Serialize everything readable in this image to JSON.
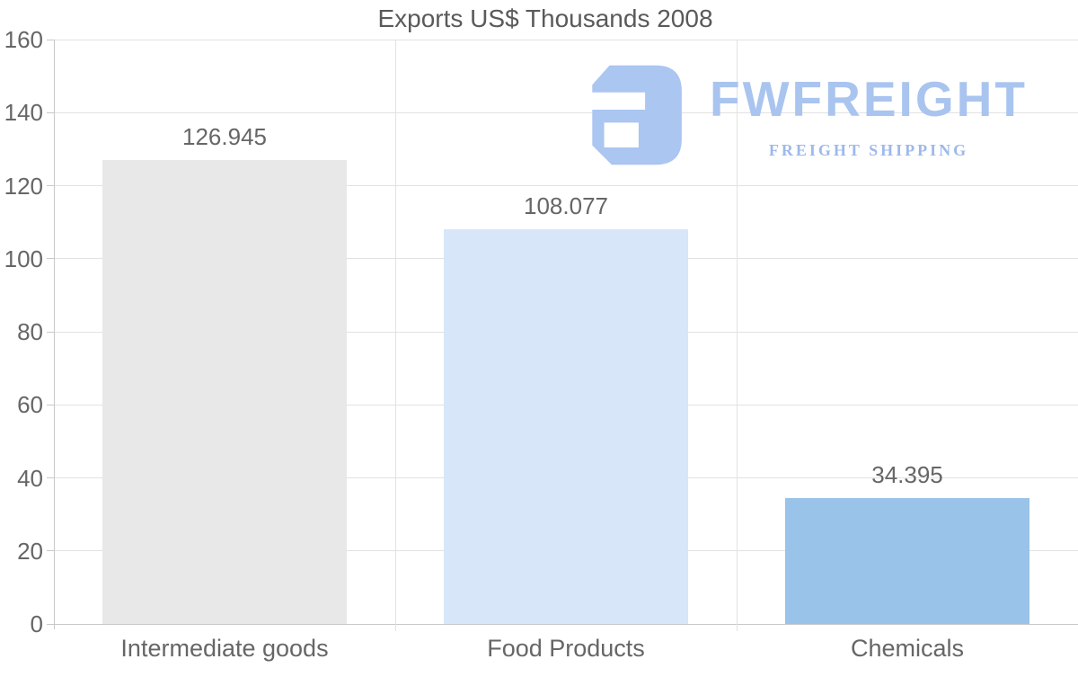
{
  "title": "Exports US$ Thousands 2008",
  "watermark": {
    "brand": "FWFREIGHT",
    "tagline": "FREIGHT SHIPPING",
    "color": "#a9c4ef"
  },
  "chart_data": {
    "type": "bar",
    "title": "Exports US$ Thousands 2008",
    "categories": [
      "Intermediate goods",
      "Food Products",
      "Chemicals"
    ],
    "values": [
      126.945,
      108.077,
      34.395
    ],
    "value_labels": [
      "126.945",
      "108.077",
      "34.395"
    ],
    "bar_colors": [
      "#e8e8e8",
      "#d7e7f9",
      "#99c3e8"
    ],
    "ylim": [
      0,
      160
    ],
    "yticks": [
      0,
      20,
      40,
      60,
      80,
      100,
      120,
      140,
      160
    ],
    "xlabel": "",
    "ylabel": "",
    "grid": true,
    "legend": false
  },
  "colors": {
    "background": "#ffffff",
    "gridline": "#e2e2e2",
    "axis_line": "#c9c9c9",
    "title_text": "#5a5a5a",
    "label_text": "#666666"
  }
}
